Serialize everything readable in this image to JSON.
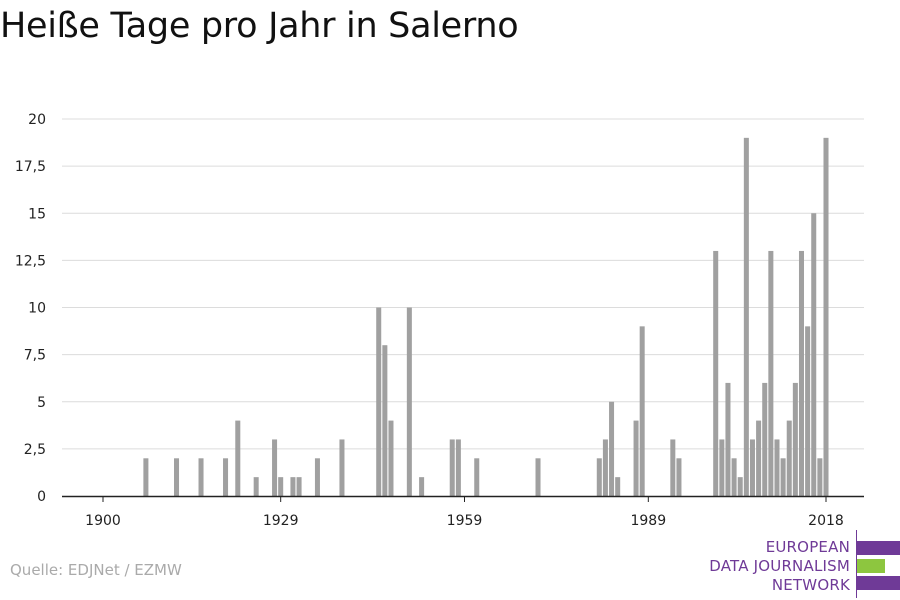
{
  "title": "Heiße Tage pro Jahr in Salerno",
  "source": "Quelle: EDJNet / EZMW",
  "logo": {
    "lines": [
      "EUROPEAN",
      "DATA JOURNALISM",
      "NETWORK"
    ],
    "colors": {
      "purple": "#6f3a97",
      "green": "#8dc63f"
    }
  },
  "colors": {
    "bar": "#a0a0a0",
    "grid": "#dcdcdc",
    "axis": "#222222"
  },
  "chart_data": {
    "type": "bar",
    "title": "Heiße Tage pro Jahr in Salerno",
    "xlabel": "",
    "ylabel": "",
    "xlim": [
      1900,
      2018
    ],
    "ylim": [
      0,
      20
    ],
    "x_ticks": [
      1900,
      1929,
      1959,
      1989,
      2018
    ],
    "y_ticks": [
      {
        "value": 0,
        "label": "0"
      },
      {
        "value": 2.5,
        "label": "2,5"
      },
      {
        "value": 5,
        "label": "5"
      },
      {
        "value": 7.5,
        "label": "7,5"
      },
      {
        "value": 10,
        "label": "10"
      },
      {
        "value": 12.5,
        "label": "12,5"
      },
      {
        "value": 15,
        "label": "15"
      },
      {
        "value": 17.5,
        "label": "17,5"
      },
      {
        "value": 20,
        "label": "20"
      }
    ],
    "grid": true,
    "x": [
      1907,
      1912,
      1916,
      1920,
      1922,
      1925,
      1928,
      1929,
      1931,
      1932,
      1935,
      1939,
      1945,
      1946,
      1947,
      1950,
      1952,
      1957,
      1958,
      1961,
      1971,
      1981,
      1982,
      1983,
      1984,
      1987,
      1988,
      1993,
      1994,
      2000,
      2001,
      2002,
      2003,
      2004,
      2005,
      2006,
      2007,
      2008,
      2009,
      2010,
      2011,
      2012,
      2013,
      2014,
      2015,
      2016,
      2017,
      2018
    ],
    "values": [
      2,
      2,
      2,
      2,
      4,
      1,
      3,
      1,
      1,
      1,
      2,
      3,
      10,
      8,
      4,
      10,
      1,
      3,
      3,
      2,
      2,
      2,
      3,
      5,
      1,
      4,
      9,
      3,
      2,
      13,
      3,
      6,
      2,
      1,
      19,
      3,
      4,
      6,
      13,
      3,
      2,
      4,
      6,
      13,
      9,
      15,
      2,
      19
    ]
  }
}
